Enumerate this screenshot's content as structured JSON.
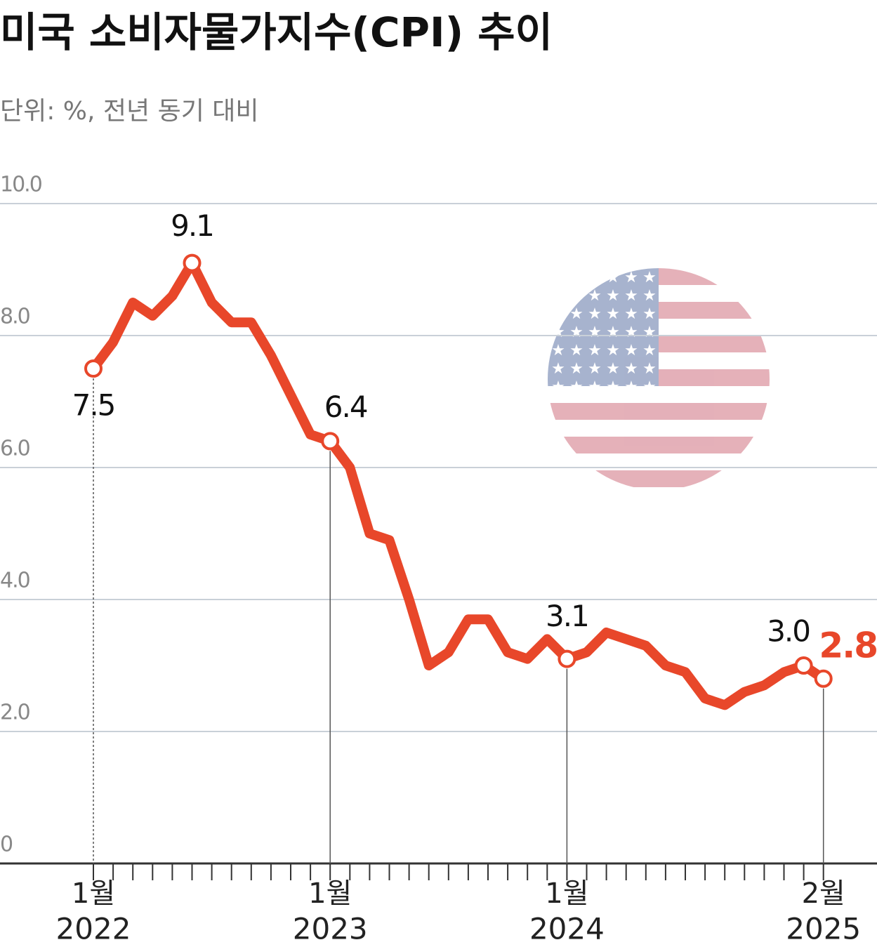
{
  "chart_data": {
    "type": "line",
    "title": "미국 소비자물가지수(CPI) 추이",
    "subtitle": "단위: %, 전년 동기 대비",
    "categories": [
      "1월",
      null,
      null,
      null,
      null,
      null,
      null,
      null,
      null,
      null,
      null,
      null,
      "1월",
      null,
      null,
      null,
      null,
      null,
      null,
      null,
      null,
      null,
      null,
      null,
      "1월",
      null,
      null,
      null,
      null,
      null,
      null,
      null,
      null,
      null,
      null,
      null,
      null,
      "2월"
    ],
    "category_years": [
      "2022",
      null,
      null,
      null,
      null,
      null,
      null,
      null,
      null,
      null,
      null,
      null,
      "2023",
      null,
      null,
      null,
      null,
      null,
      null,
      null,
      null,
      null,
      null,
      null,
      "2024",
      null,
      null,
      null,
      null,
      null,
      null,
      null,
      null,
      null,
      null,
      null,
      null,
      "2025"
    ],
    "values": [
      7.5,
      7.9,
      8.5,
      8.3,
      8.6,
      9.1,
      8.5,
      8.2,
      8.2,
      7.7,
      7.1,
      6.5,
      6.4,
      6.0,
      5.0,
      4.9,
      4.0,
      3.0,
      3.2,
      3.7,
      3.7,
      3.2,
      3.1,
      3.4,
      3.1,
      3.2,
      3.5,
      3.4,
      3.3,
      3.0,
      2.9,
      2.5,
      2.4,
      2.6,
      2.7,
      2.9,
      3.0,
      2.8
    ],
    "value_labels": [
      "7.5",
      null,
      null,
      null,
      null,
      "9.1",
      null,
      null,
      null,
      null,
      null,
      null,
      "6.4",
      null,
      null,
      null,
      null,
      null,
      null,
      null,
      null,
      null,
      null,
      null,
      "3.1",
      null,
      null,
      null,
      null,
      null,
      null,
      null,
      null,
      null,
      null,
      null,
      "3.0",
      "2.8"
    ],
    "color": "#e8472a",
    "highlight_color": "#e8472a",
    "ylim": [
      0,
      10
    ],
    "yticks": [
      0,
      {
        "value": 2,
        "label": "2.0"
      },
      {
        "value": 4,
        "label": "4.0"
      },
      {
        "value": 6,
        "label": "6.0"
      },
      {
        "value": 8,
        "label": "8.0"
      },
      {
        "value": 10,
        "label": "10.0"
      }
    ],
    "grid": true
  }
}
